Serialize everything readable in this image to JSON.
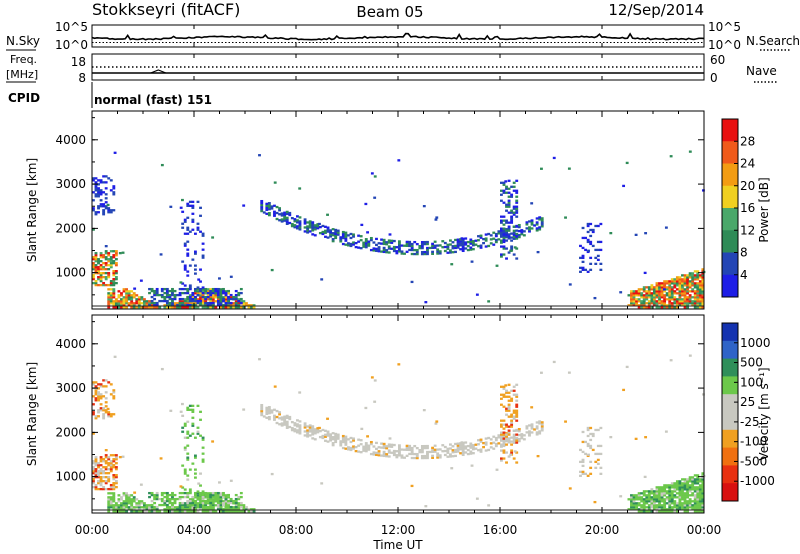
{
  "header": {
    "station": "Stokkseyri (fitACF)",
    "beam": "Beam 05",
    "date": "12/Sep/2014"
  },
  "summary": {
    "nsky_label": "N.Sky",
    "nsky_ticks": [
      "10^5",
      "10^0"
    ],
    "nsearch_label": "N.Search",
    "nsearch_ticks": [
      "10^5",
      "10^0"
    ],
    "freq_label_1": "Freq.",
    "freq_label_2": "[MHz]",
    "freq_ticks": [
      "18",
      "8"
    ],
    "nave_label": "Nave",
    "nave_ticks": [
      "60",
      "0"
    ],
    "cpid_label": "CPID",
    "cpid_value": "normal (fast) 151"
  },
  "colors": {
    "power_scale": [
      "#1e1ee6",
      "#2345b5",
      "#2e8b57",
      "#4aa86a",
      "#f0d020",
      "#f39c12",
      "#f05a1a",
      "#e81010"
    ],
    "velocity_scale": [
      "#1533b0",
      "#2f64c8",
      "#2f8f5a",
      "#6cc84a",
      "#c8c8c0",
      "#c8c8c0",
      "#f0a020",
      "#f07010",
      "#e83010",
      "#d81010"
    ]
  },
  "chart_data": [
    {
      "type": "heatmap",
      "name": "Power",
      "ylabel": "Slant Range [km]",
      "yticks": [
        "1000",
        "2000",
        "3000",
        "4000"
      ],
      "ylim": [
        180,
        4650
      ],
      "xlim": [
        0,
        24
      ],
      "xticks": [
        "00:00",
        "04:00",
        "08:00",
        "12:00",
        "16:00",
        "20:00",
        "00:00"
      ],
      "colorbar_label": "Power [dB]",
      "colorbar_ticks": [
        "4",
        "8",
        "12",
        "16",
        "20",
        "24",
        "28"
      ],
      "colorbar_range": [
        0,
        32
      ],
      "grid": false
    },
    {
      "type": "heatmap",
      "name": "Velocity",
      "ylabel": "Slant Range [km]",
      "yticks": [
        "1000",
        "2000",
        "3000",
        "4000"
      ],
      "ylim": [
        180,
        4650
      ],
      "xlim": [
        0,
        24
      ],
      "xticks": [
        "00:00",
        "04:00",
        "08:00",
        "12:00",
        "16:00",
        "20:00",
        "00:00"
      ],
      "xlabel": "Time UT",
      "colorbar_label": "Velocity [m s⁻¹]",
      "colorbar_ticks": [
        "1000",
        "500",
        "100",
        "25",
        "-25",
        "-100",
        "-500",
        "-1000"
      ],
      "grid": false
    }
  ]
}
